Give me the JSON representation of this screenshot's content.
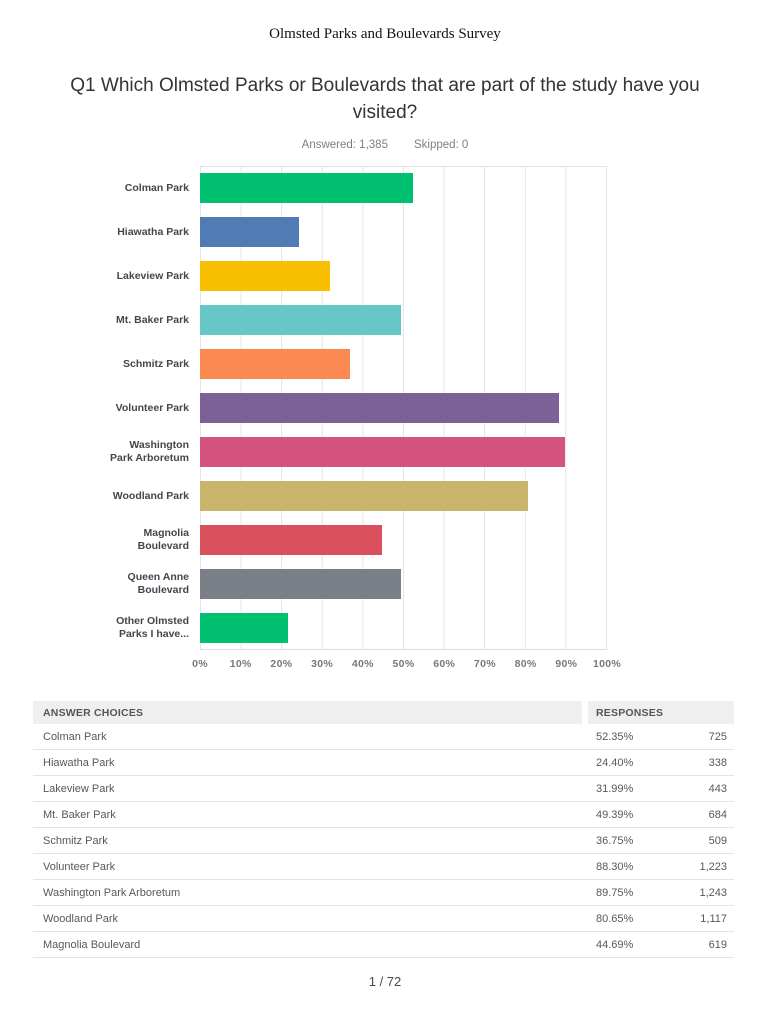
{
  "page": {
    "doc_title": "Olmsted Parks and Boulevards Survey",
    "question_title": "Q1 Which Olmsted Parks or Boulevards that are part of the study have you visited?",
    "answered_label": "Answered: 1,385",
    "skipped_label": "Skipped: 0",
    "page_number": "1 / 72"
  },
  "chart_data": {
    "type": "bar",
    "orientation": "horizontal",
    "title": "Q1 Which Olmsted Parks or Boulevards that are part of the study have you visited?",
    "answered": 1385,
    "skipped": 0,
    "xlabel": "",
    "ylabel": "",
    "xlim": [
      0,
      100
    ],
    "grid": true,
    "legend": false,
    "x_ticks": [
      "0%",
      "10%",
      "20%",
      "30%",
      "40%",
      "50%",
      "60%",
      "70%",
      "80%",
      "90%",
      "100%"
    ],
    "categories": [
      "Colman Park",
      "Hiawatha Park",
      "Lakeview Park",
      "Mt. Baker Park",
      "Schmitz Park",
      "Volunteer Park",
      "Washington\nPark Arboretum",
      "Woodland Park",
      "Magnolia\nBoulevard",
      "Queen Anne\nBoulevard",
      "Other Olmsted\nParks I have..."
    ],
    "values": [
      52.35,
      24.4,
      31.99,
      49.39,
      36.75,
      88.3,
      89.75,
      80.65,
      44.69,
      49.5,
      21.5
    ],
    "bar_colors": [
      "#00BF6F",
      "#507CB6",
      "#F8BE00",
      "#69C6C6",
      "#FA8A52",
      "#7D6196",
      "#D4537E",
      "#C9B46E",
      "#D94F5C",
      "#798087",
      "#00BF6F"
    ]
  },
  "table": {
    "headers": [
      "ANSWER CHOICES",
      "RESPONSES"
    ],
    "rows": [
      {
        "choice": "Colman Park",
        "percent": "52.35%",
        "count": "725"
      },
      {
        "choice": "Hiawatha Park",
        "percent": "24.40%",
        "count": "338"
      },
      {
        "choice": "Lakeview Park",
        "percent": "31.99%",
        "count": "443"
      },
      {
        "choice": "Mt. Baker Park",
        "percent": "49.39%",
        "count": "684"
      },
      {
        "choice": "Schmitz Park",
        "percent": "36.75%",
        "count": "509"
      },
      {
        "choice": "Volunteer Park",
        "percent": "88.30%",
        "count": "1,223"
      },
      {
        "choice": "Washington Park Arboretum",
        "percent": "89.75%",
        "count": "1,243"
      },
      {
        "choice": "Woodland Park",
        "percent": "80.65%",
        "count": "1,117"
      },
      {
        "choice": "Magnolia Boulevard",
        "percent": "44.69%",
        "count": "619"
      }
    ]
  },
  "colors": {
    "grid_line": "#e4e4e4",
    "table_header_bg": "#efefef",
    "label_text": "#43464c",
    "tick_text": "#75787d"
  }
}
